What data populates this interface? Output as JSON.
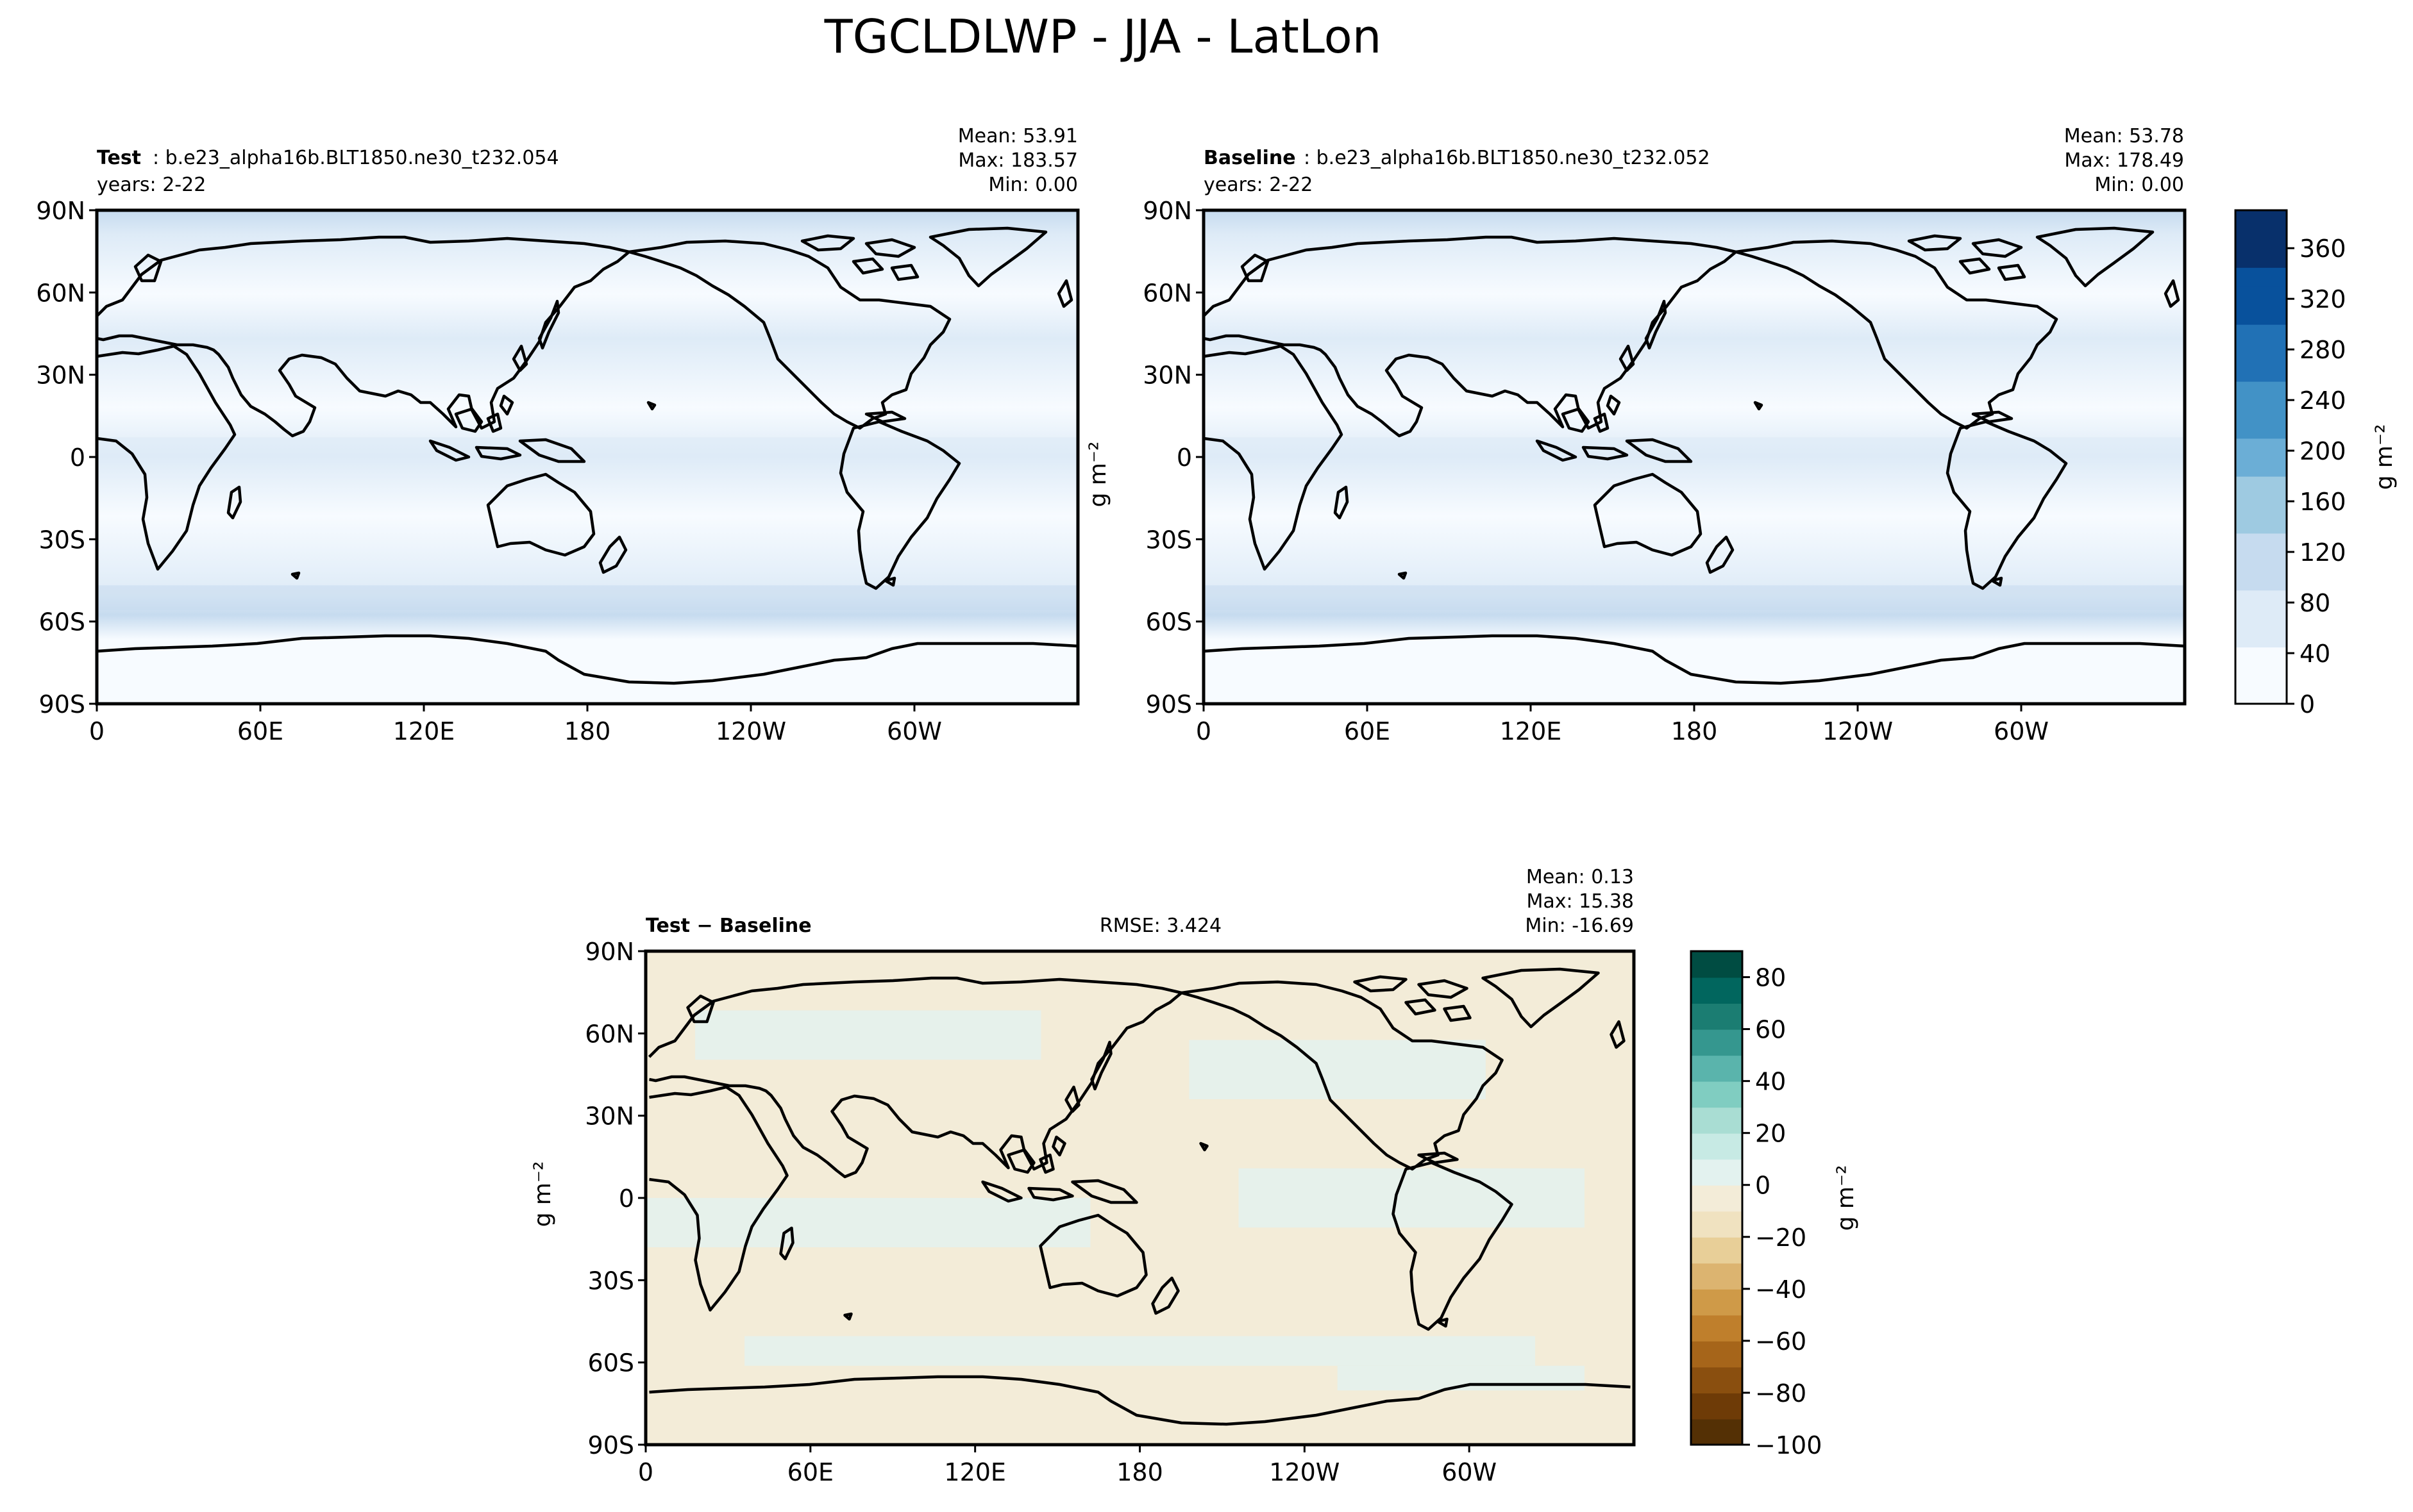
{
  "figure_title": "TGCLDLWP - JJA - LatLon",
  "colors": {
    "test_baseline_cmap": [
      "#f7fbff",
      "#deebf7",
      "#c6dbef",
      "#9ecae1",
      "#6baed6",
      "#4292c6",
      "#2171b5",
      "#08519c",
      "#08306b"
    ],
    "diff_cmap_neg": [
      "#f3ecd8",
      "#f0e2c0",
      "#e8cf98",
      "#dcb470",
      "#cf9a48",
      "#bf7f2c",
      "#a6651a",
      "#8a4f0f",
      "#6e3b07",
      "#543005"
    ],
    "diff_cmap_pos": [
      "#e3f2ef",
      "#c7eae4",
      "#a9ddd3",
      "#80cdc1",
      "#5ab4ac",
      "#35978f",
      "#1b7d72",
      "#01665e",
      "#004c42"
    ]
  },
  "panels": {
    "test": {
      "label_bold": "Test",
      "case": ": b.e23_alpha16b.BLT1850.ne30_t232.054",
      "years": "years: 2-22",
      "mean": "Mean: 53.91",
      "max": "Max: 183.57",
      "min": "Min:  0.00"
    },
    "baseline": {
      "label_bold": "Baseline",
      "case": ": b.e23_alpha16b.BLT1850.ne30_t232.052",
      "years": "years: 2-22",
      "mean": "Mean: 53.78",
      "max": "Max: 178.49",
      "min": "Min:  0.00",
      "ylabel": "g m⁻²"
    },
    "diff": {
      "label_bold": "Test − Baseline",
      "rmse": "RMSE: 3.424",
      "mean": "Mean:  0.13",
      "max": "Max: 15.38",
      "min": "Min: -16.69",
      "ylabel": "g m⁻²"
    }
  },
  "chart_data": [
    {
      "type": "heatmap",
      "panel": "test",
      "x_ticks": [
        "0",
        "60E",
        "120E",
        "180",
        "120W",
        "60W"
      ],
      "y_ticks": [
        "90N",
        "60N",
        "30N",
        "0",
        "30S",
        "60S",
        "90S"
      ],
      "xlim": [
        0,
        360
      ],
      "ylim": [
        -90,
        90
      ]
    },
    {
      "type": "heatmap",
      "panel": "baseline",
      "x_ticks": [
        "0",
        "60E",
        "120E",
        "180",
        "120W",
        "60W"
      ],
      "y_ticks": [
        "90N",
        "60N",
        "30N",
        "0",
        "30S",
        "60S",
        "90S"
      ],
      "xlim": [
        0,
        360
      ],
      "ylim": [
        -90,
        90
      ],
      "colorbar": {
        "label": "g m⁻²",
        "ticks": [
          "0",
          "40",
          "80",
          "120",
          "160",
          "200",
          "240",
          "280",
          "320",
          "360"
        ],
        "range": [
          0,
          390
        ]
      }
    },
    {
      "type": "heatmap",
      "panel": "diff",
      "x_ticks": [
        "0",
        "60E",
        "120E",
        "180",
        "120W",
        "60W"
      ],
      "y_ticks": [
        "90N",
        "60N",
        "30N",
        "0",
        "30S",
        "60S",
        "90S"
      ],
      "xlim": [
        0,
        360
      ],
      "ylim": [
        -90,
        90
      ],
      "colorbar": {
        "label": "g m⁻²",
        "ticks": [
          "−100",
          "−80",
          "−60",
          "−40",
          "−20",
          "0",
          "20",
          "40",
          "60",
          "80"
        ],
        "range": [
          -100,
          90
        ]
      }
    }
  ]
}
